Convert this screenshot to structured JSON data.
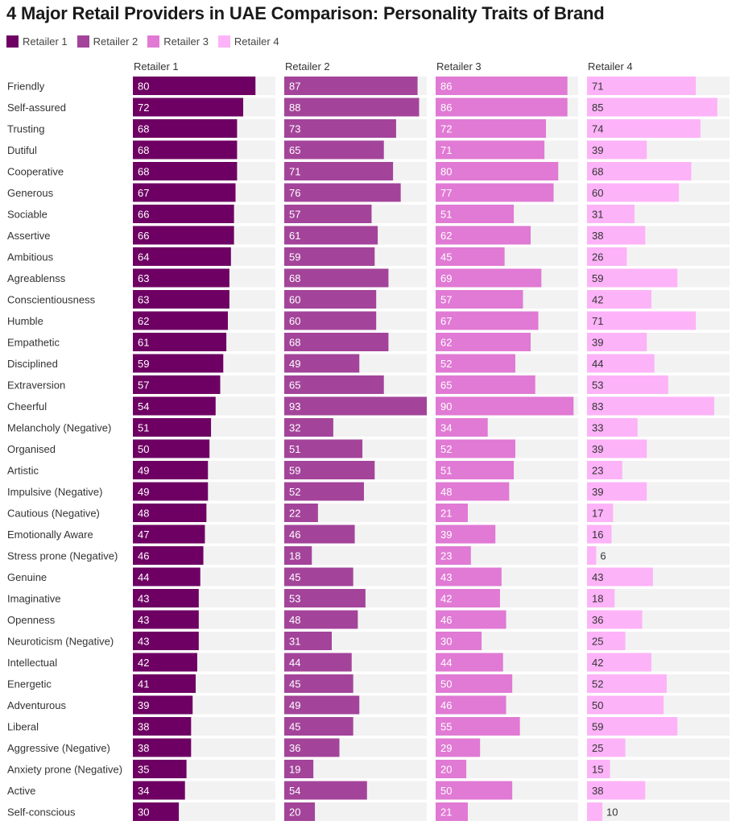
{
  "colors": {
    "retailer1": "#6e0063",
    "retailer2": "#a3449a",
    "retailer3": "#e07ad4",
    "retailer4": "#fdb3f8",
    "track": "#f2f2f2"
  },
  "chart_data": {
    "type": "bar",
    "orientation": "horizontal",
    "layout": "small-multiples",
    "title": "4 Major Retail Providers in UAE Comparison: Personality Traits of Brand",
    "xlim": [
      0,
      93
    ],
    "legend": "top-left",
    "categories": [
      "Friendly",
      "Self-assured",
      "Trusting",
      "Dutiful",
      "Cooperative",
      "Generous",
      "Sociable",
      "Assertive",
      "Ambitious",
      "Agreablenss",
      "Conscientiousness",
      "Humble",
      "Empathetic",
      "Disciplined",
      "Extraversion",
      "Cheerful",
      "Melancholy (Negative)",
      "Organised",
      "Artistic",
      "Impulsive (Negative)",
      "Cautious (Negative)",
      "Emotionally Aware",
      "Stress prone (Negative)",
      "Genuine",
      "Imaginative",
      "Openness",
      "Neuroticism (Negative)",
      "Intellectual",
      "Energetic",
      "Adventurous",
      "Liberal",
      "Aggressive (Negative)",
      "Anxiety prone (Negative)",
      "Active",
      "Self-conscious"
    ],
    "series": [
      {
        "name": "Retailer 1",
        "values": [
          80,
          72,
          68,
          68,
          68,
          67,
          66,
          66,
          64,
          63,
          63,
          62,
          61,
          59,
          57,
          54,
          51,
          50,
          49,
          49,
          48,
          47,
          46,
          44,
          43,
          43,
          43,
          42,
          41,
          39,
          38,
          38,
          35,
          34,
          30
        ]
      },
      {
        "name": "Retailer 2",
        "values": [
          87,
          88,
          73,
          65,
          71,
          76,
          57,
          61,
          59,
          68,
          60,
          60,
          68,
          49,
          65,
          93,
          32,
          51,
          59,
          52,
          22,
          46,
          18,
          45,
          53,
          48,
          31,
          44,
          45,
          49,
          45,
          36,
          19,
          54,
          20
        ]
      },
      {
        "name": "Retailer 3",
        "values": [
          86,
          86,
          72,
          71,
          80,
          77,
          51,
          62,
          45,
          69,
          57,
          67,
          62,
          52,
          65,
          90,
          34,
          52,
          51,
          48,
          21,
          39,
          23,
          43,
          42,
          46,
          30,
          44,
          50,
          46,
          55,
          29,
          20,
          50,
          21
        ]
      },
      {
        "name": "Retailer 4",
        "values": [
          71,
          85,
          74,
          39,
          68,
          60,
          31,
          38,
          26,
          59,
          42,
          71,
          39,
          44,
          53,
          83,
          33,
          39,
          23,
          39,
          17,
          16,
          6,
          43,
          18,
          36,
          25,
          42,
          52,
          50,
          59,
          25,
          15,
          38,
          10
        ]
      }
    ]
  }
}
